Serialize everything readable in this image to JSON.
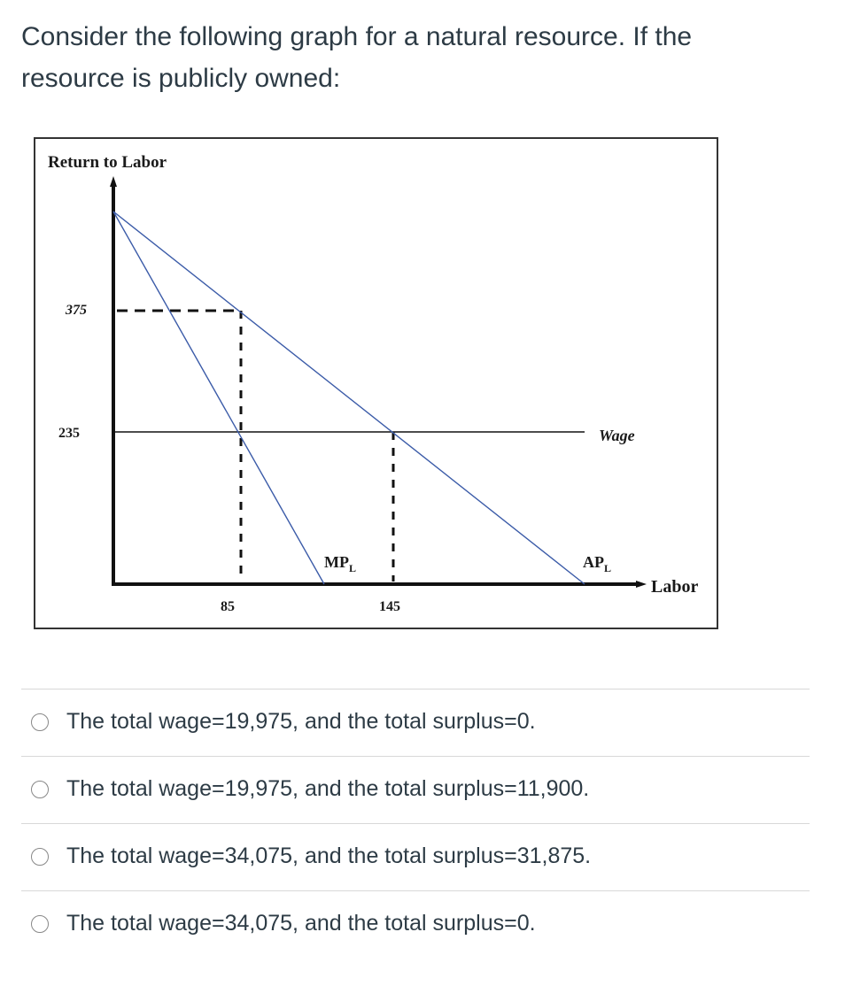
{
  "question": {
    "line1": "Consider the following graph for a natural resource. If the",
    "line2": "resource is publicly owned:"
  },
  "chart_data": {
    "type": "line",
    "ylabel": "Return to Labor",
    "xlabel": "Labor",
    "y_ticks": [
      "375",
      "235"
    ],
    "x_ticks": [
      "85",
      "145"
    ],
    "series": [
      {
        "name": "MP",
        "subscript": "L",
        "x": [
          0,
          85,
          170
        ],
        "y": [
          515,
          235,
          0
        ]
      },
      {
        "name": "AP",
        "subscript": "L",
        "x": [
          0,
          85,
          145,
          370
        ],
        "y": [
          515,
          375,
          235,
          0
        ]
      },
      {
        "name": "Wage",
        "subscript": "",
        "x": [
          0,
          370
        ],
        "y": [
          235,
          235
        ]
      }
    ],
    "annotations": [
      "dashed line from y=375 to AP at x=85",
      "dashed vertical at x=85",
      "dashed vertical at x=145"
    ],
    "colors": {
      "curves": "#3b5ba8",
      "axes": "#111111"
    }
  },
  "options": [
    {
      "text": "The total wage=19,975, and the total surplus=0."
    },
    {
      "text": "The total wage=19,975, and the total surplus=11,900."
    },
    {
      "text": "The total wage=34,075, and the total surplus=31,875."
    },
    {
      "text": "The total wage=34,075, and the total surplus=0."
    }
  ]
}
